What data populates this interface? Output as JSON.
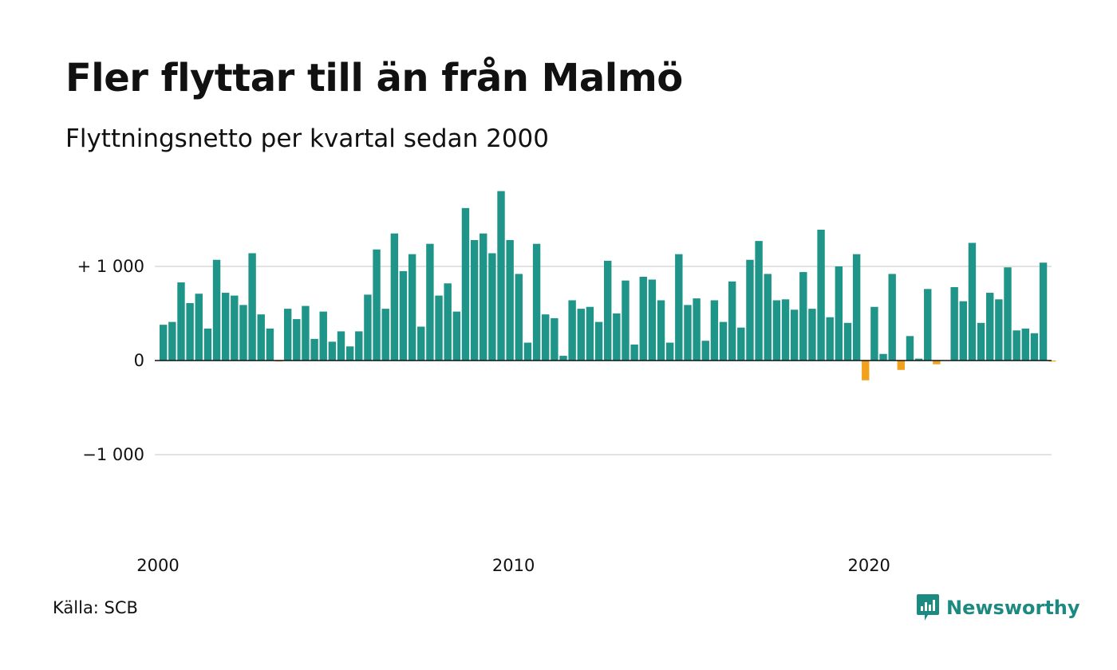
{
  "title": "Fler flyttar till än från Malmö",
  "subtitle": "Flyttningsnetto per kvartal sedan 2000",
  "source": "Källa: SCB",
  "brand": "Newsworthy",
  "colors": {
    "positive": "#1f9488",
    "negative": "#f1a11d",
    "grid": "#e3e3e3",
    "baseline": "#111111",
    "brand": "#1c8a80"
  },
  "chart_data": {
    "type": "bar",
    "ylim": [
      -2000,
      1850
    ],
    "y_ticks": [
      {
        "value": 1000,
        "label": "+ 1 000"
      },
      {
        "value": 0,
        "label": "0"
      },
      {
        "value": -1000,
        "label": "−1 000"
      }
    ],
    "x_start": 2000,
    "x_ticks": [
      {
        "year": 2000,
        "label": "2000"
      },
      {
        "year": 2010,
        "label": "2010"
      },
      {
        "year": 2020,
        "label": "2020"
      }
    ],
    "grid": true,
    "values": [
      380,
      410,
      830,
      610,
      710,
      340,
      1070,
      720,
      690,
      590,
      1140,
      490,
      340,
      -10,
      550,
      440,
      580,
      230,
      520,
      200,
      310,
      150,
      310,
      700,
      1180,
      550,
      1350,
      950,
      1130,
      360,
      1240,
      690,
      820,
      520,
      1620,
      1280,
      1350,
      1140,
      1800,
      1280,
      920,
      190,
      1240,
      490,
      450,
      50,
      640,
      550,
      570,
      410,
      1060,
      500,
      850,
      170,
      890,
      860,
      640,
      190,
      1130,
      590,
      660,
      210,
      640,
      410,
      840,
      350,
      1070,
      1270,
      920,
      640,
      650,
      540,
      940,
      550,
      1390,
      460,
      1000,
      400,
      1130,
      -210,
      570,
      70,
      920,
      -100,
      260,
      20,
      760,
      -40,
      0,
      780,
      630,
      1250,
      400,
      720,
      650,
      990,
      320,
      340,
      290,
      1040,
      -10
    ]
  }
}
